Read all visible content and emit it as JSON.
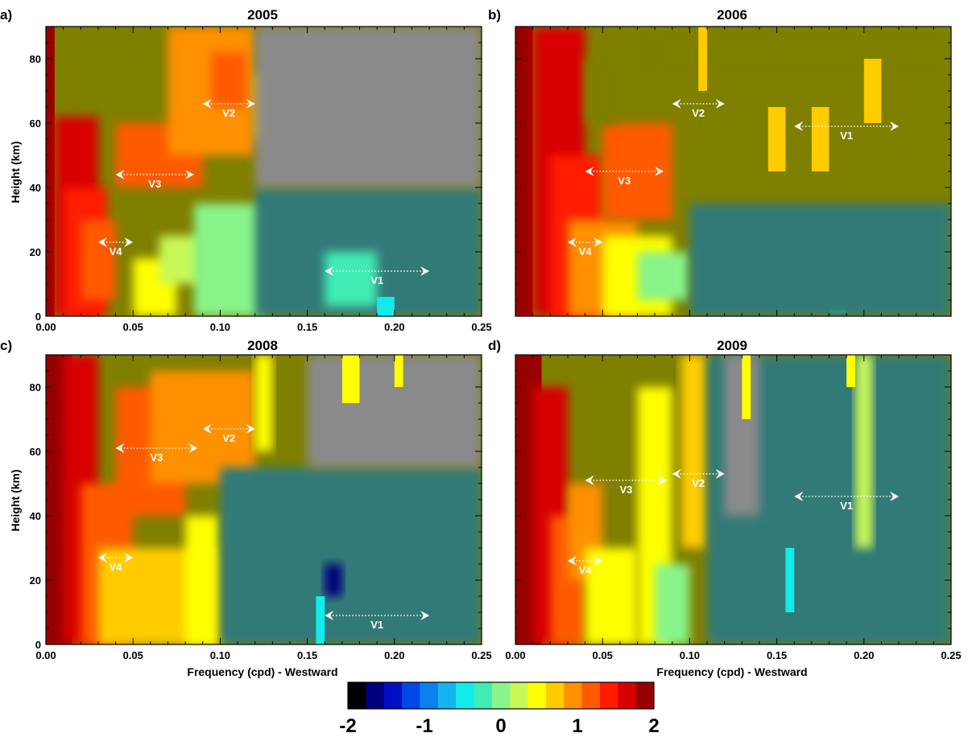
{
  "chart_data": [
    {
      "type": "heatmap",
      "panel_label": "a)",
      "title": "2005",
      "xlabel": "",
      "ylabel": "Height (km)",
      "xlim": [
        0.0,
        0.25
      ],
      "ylim": [
        0,
        90
      ],
      "x_ticks": [
        "0.00",
        "0.05",
        "0.10",
        "0.15",
        "0.20",
        "0.25"
      ],
      "y_ticks": [
        "0",
        "20",
        "40",
        "60",
        "80"
      ],
      "annotations": [
        {
          "label": "V1",
          "x_start": 0.16,
          "x_end": 0.22,
          "y": 14
        },
        {
          "label": "V2",
          "x_start": 0.09,
          "x_end": 0.12,
          "y": 66
        },
        {
          "label": "V3",
          "x_start": 0.04,
          "x_end": 0.085,
          "y": 44
        },
        {
          "label": "V4",
          "x_start": 0.03,
          "x_end": 0.05,
          "y": 23
        }
      ]
    },
    {
      "type": "heatmap",
      "panel_label": "b)",
      "title": "2006",
      "xlabel": "",
      "ylabel": "",
      "xlim": [
        0.0,
        0.25
      ],
      "ylim": [
        0,
        90
      ],
      "x_ticks": [],
      "y_ticks": [],
      "annotations": [
        {
          "label": "V1",
          "x_start": 0.16,
          "x_end": 0.22,
          "y": 59
        },
        {
          "label": "V2",
          "x_start": 0.09,
          "x_end": 0.12,
          "y": 66
        },
        {
          "label": "V3",
          "x_start": 0.04,
          "x_end": 0.085,
          "y": 45
        },
        {
          "label": "V4",
          "x_start": 0.03,
          "x_end": 0.05,
          "y": 23
        }
      ]
    },
    {
      "type": "heatmap",
      "panel_label": "c)",
      "title": "2008",
      "xlabel": "Frequency (cpd) - Westward",
      "ylabel": "Height (km)",
      "xlim": [
        0.0,
        0.25
      ],
      "ylim": [
        0,
        90
      ],
      "x_ticks": [
        "0.00",
        "0.05",
        "0.10",
        "0.15",
        "0.20",
        "0.25"
      ],
      "y_ticks": [
        "0",
        "20",
        "40",
        "60",
        "80"
      ],
      "annotations": [
        {
          "label": "V1",
          "x_start": 0.16,
          "x_end": 0.22,
          "y": 9
        },
        {
          "label": "V2",
          "x_start": 0.09,
          "x_end": 0.12,
          "y": 67
        },
        {
          "label": "V3",
          "x_start": 0.04,
          "x_end": 0.087,
          "y": 61
        },
        {
          "label": "V4",
          "x_start": 0.03,
          "x_end": 0.05,
          "y": 27
        }
      ]
    },
    {
      "type": "heatmap",
      "panel_label": "d)",
      "title": "2009",
      "xlabel": "Frequency (cpd) - Westward",
      "ylabel": "",
      "xlim": [
        0.0,
        0.25
      ],
      "ylim": [
        0,
        90
      ],
      "x_ticks": [
        "0.00",
        "0.05",
        "0.10",
        "0.15",
        "0.20",
        "0.25"
      ],
      "y_ticks": [],
      "annotations": [
        {
          "label": "V1",
          "x_start": 0.16,
          "x_end": 0.22,
          "y": 46
        },
        {
          "label": "V2",
          "x_start": 0.09,
          "x_end": 0.12,
          "y": 53
        },
        {
          "label": "V3",
          "x_start": 0.04,
          "x_end": 0.087,
          "y": 51
        },
        {
          "label": "V4",
          "x_start": 0.03,
          "x_end": 0.05,
          "y": 26
        }
      ]
    }
  ],
  "colorbar": {
    "min": -2,
    "max": 2,
    "tick_labels": [
      "-2",
      "-1",
      "0",
      "1",
      "2"
    ],
    "colors": [
      "#000000",
      "#00007c",
      "#0010c4",
      "#0048e6",
      "#0a82ee",
      "#16b4ec",
      "#10ecec",
      "#40ecb4",
      "#88f48a",
      "#c8f858",
      "#ffff00",
      "#ffcc00",
      "#ff9000",
      "#ff5a00",
      "#ff1a00",
      "#d80000",
      "#980000"
    ]
  },
  "colors": {
    "background_olive": "#7f7f00",
    "background_grey": "#8a8a8a",
    "teal": "#307a78",
    "annotation": "#ffffff"
  }
}
